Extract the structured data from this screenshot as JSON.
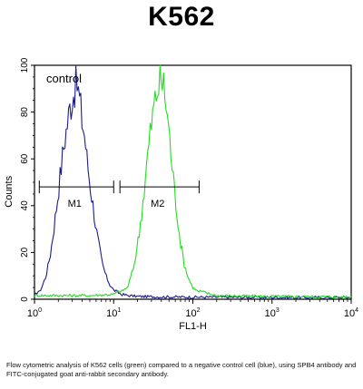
{
  "chart_data": {
    "type": "line",
    "title": "K562",
    "xlabel": "FL1-H",
    "ylabel": "Counts",
    "x_scale": "log",
    "xlim": [
      1,
      10000
    ],
    "ylim": [
      0,
      100
    ],
    "x_ticks": [
      {
        "base": "10",
        "exp": "0"
      },
      {
        "base": "10",
        "exp": "1"
      },
      {
        "base": "10",
        "exp": "2"
      },
      {
        "base": "10",
        "exp": "3"
      },
      {
        "base": "10",
        "exp": "4"
      }
    ],
    "y_ticks": [
      "0",
      "20",
      "40",
      "60",
      "80",
      "100"
    ],
    "annotation": "control",
    "markers": [
      {
        "label": "M1",
        "x_range": [
          1.15,
          10
        ],
        "y": 48
      },
      {
        "label": "M2",
        "x_range": [
          12,
          120
        ],
        "y": 48
      }
    ],
    "series": [
      {
        "color": "#1c1c8c",
        "x": [
          1,
          1.2,
          1.4,
          1.6,
          1.8,
          2.0,
          2.2,
          2.4,
          2.6,
          2.8,
          3.0,
          3.2,
          3.4,
          3.6,
          3.8,
          4.0,
          4.3,
          4.6,
          5.0,
          5.5,
          6.0,
          6.6,
          7.2,
          8.0,
          9.0,
          10,
          11,
          12.5,
          15,
          20,
          40,
          100,
          1000,
          10000
        ],
        "y": [
          1,
          4,
          10,
          20,
          33,
          46,
          58,
          68,
          75,
          82,
          86,
          90,
          93,
          88,
          83,
          76,
          70,
          60,
          50,
          40,
          30,
          22,
          15,
          10,
          6,
          4,
          2.5,
          1.5,
          1,
          0.6,
          0.4,
          0.3,
          0.2,
          0.1
        ]
      },
      {
        "color": "#22dd22",
        "x": [
          1,
          2,
          5,
          10,
          15,
          18,
          21,
          24,
          27,
          30,
          33,
          36,
          39,
          42,
          45,
          49,
          53,
          58,
          64,
          70,
          78,
          88,
          100,
          120,
          150,
          200,
          400,
          1000,
          10000
        ],
        "y": [
          1,
          1,
          1,
          1.5,
          5,
          14,
          28,
          45,
          62,
          75,
          84,
          90,
          94,
          92,
          86,
          75,
          62,
          48,
          35,
          24,
          15,
          9,
          5,
          3,
          2,
          1,
          0.8,
          0.6,
          0.4
        ]
      }
    ],
    "caption": "Flow cytometric analysis of K562 cells (green) compared to a negative control cell (blue), using SPB4 antibody and FITC-conjugated goat anti-rabbit secondary antibody."
  }
}
